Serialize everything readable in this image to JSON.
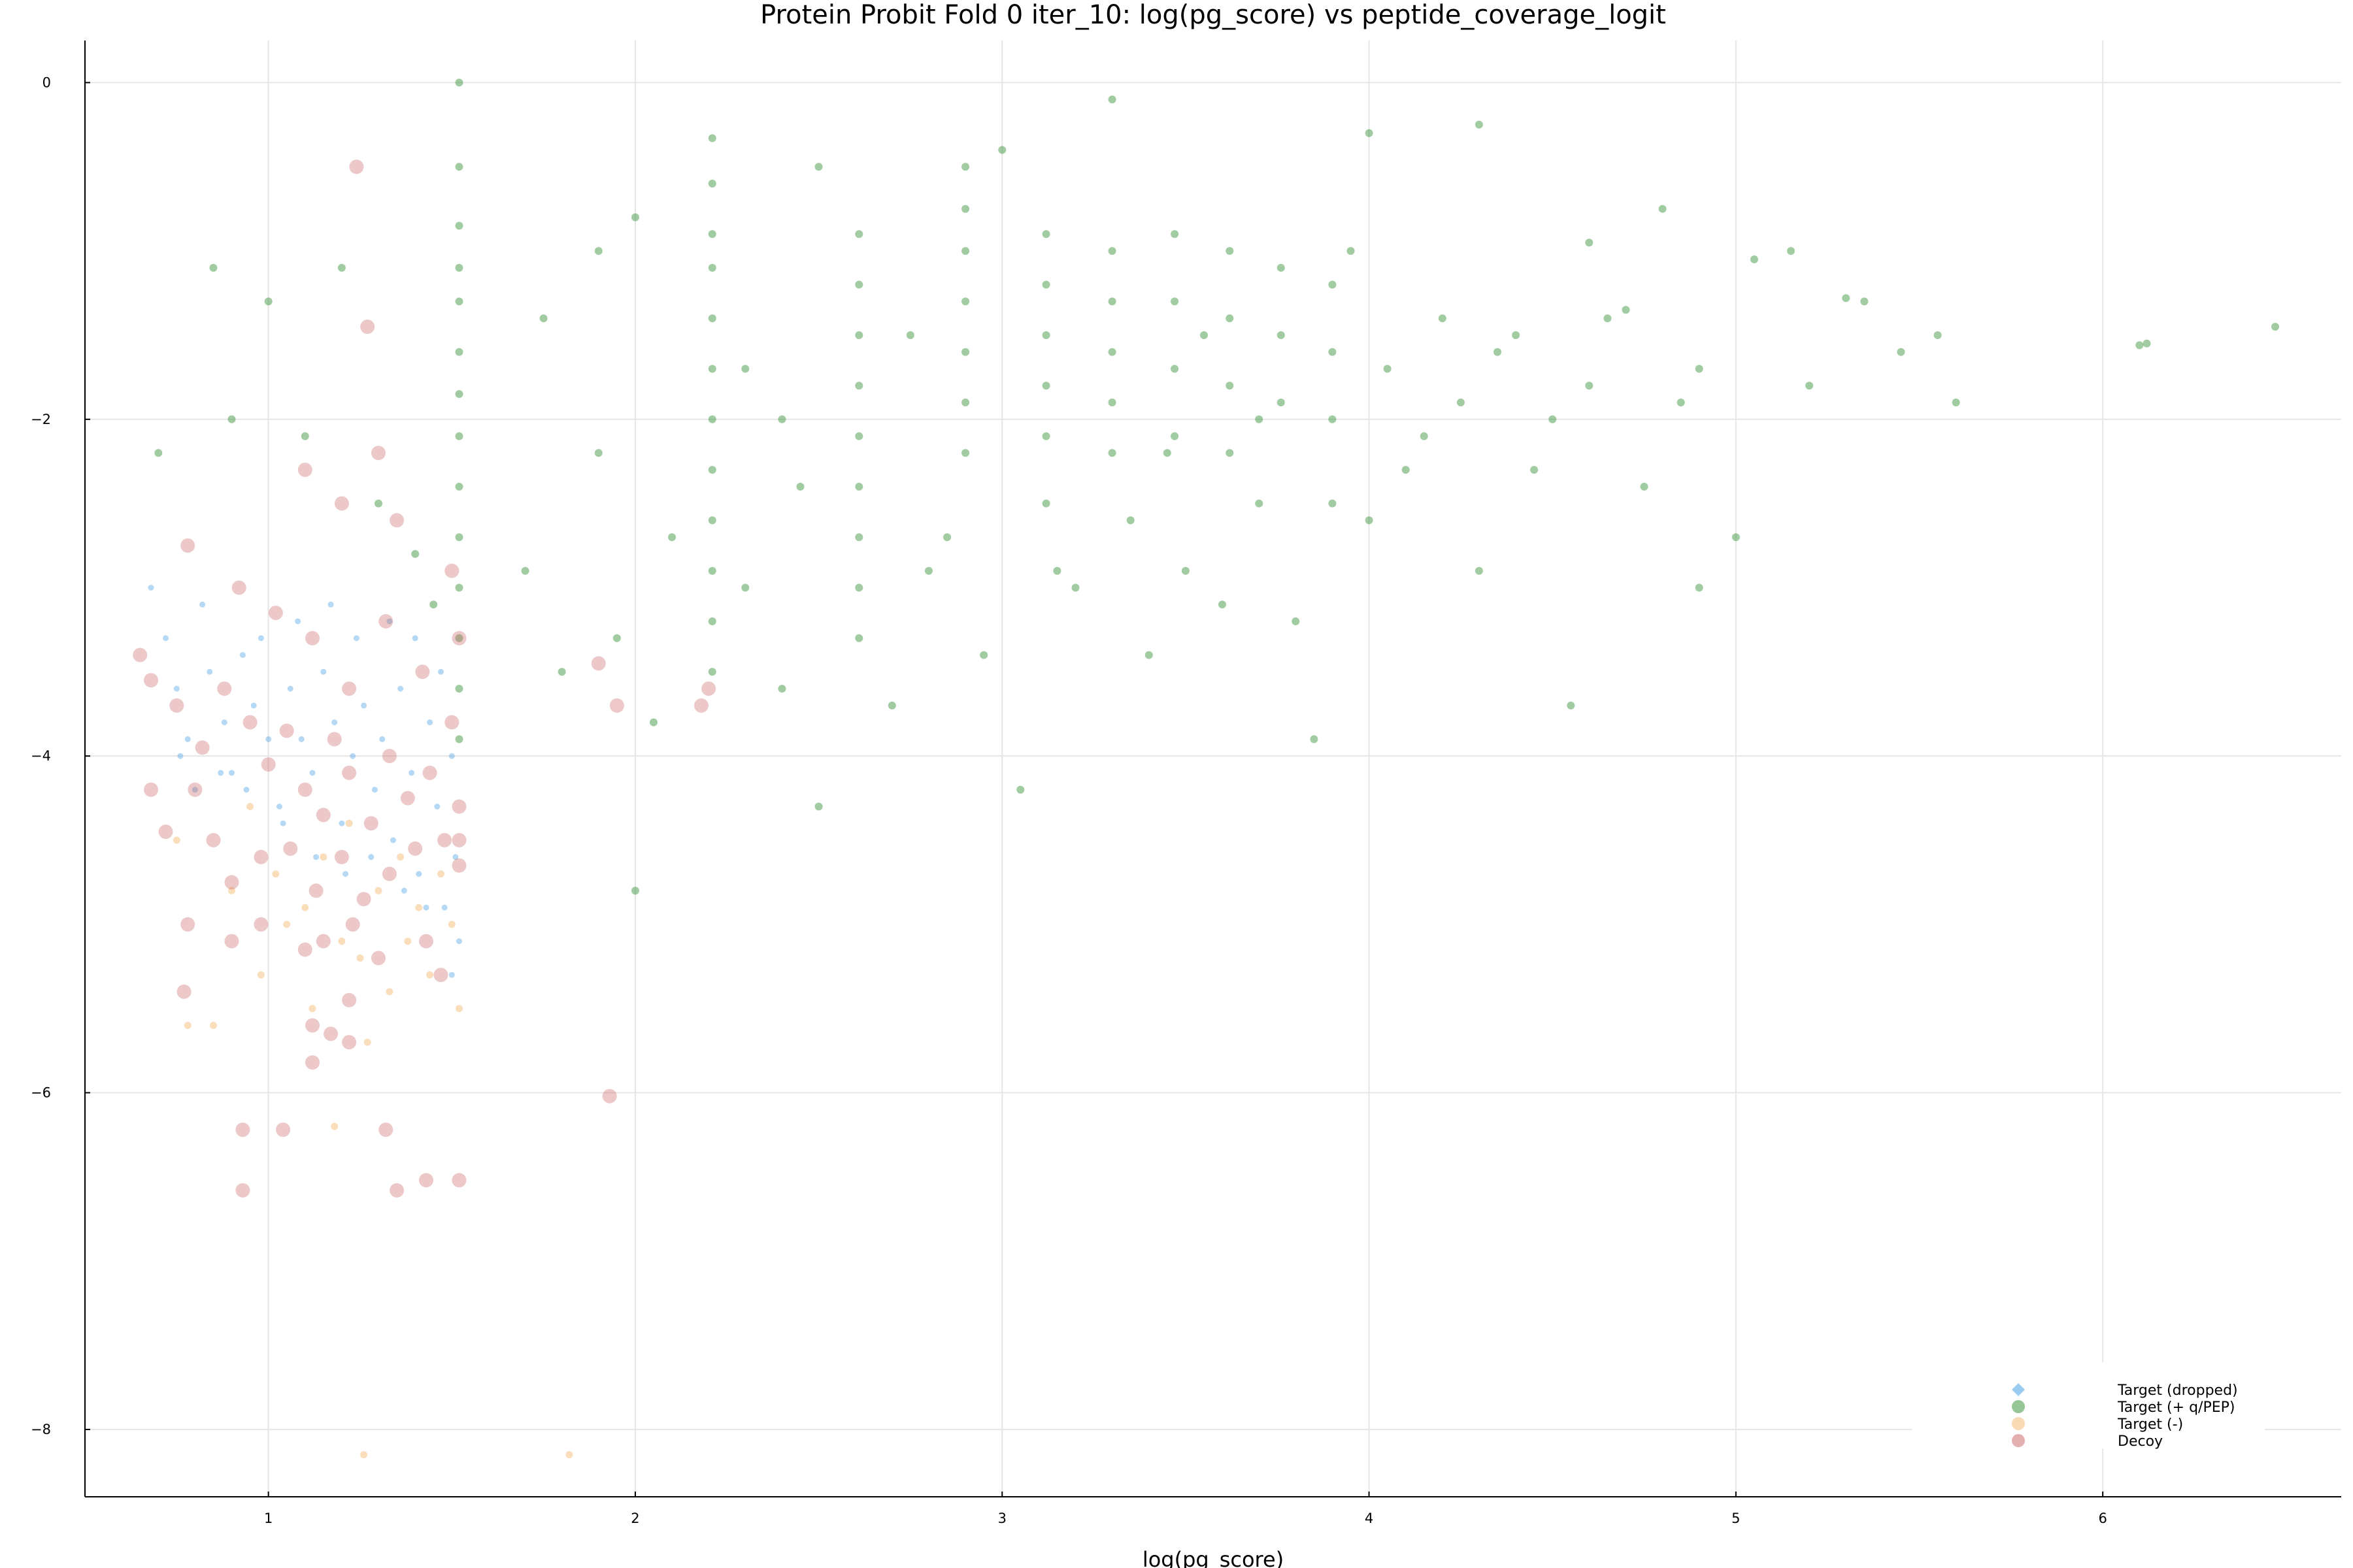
{
  "chart_data": {
    "type": "scatter",
    "title": "Protein Probit Fold 0 iter_10: log(pg_score) vs peptide_coverage_logit",
    "xlabel": "log(pg_score)",
    "ylabel": "",
    "xlim": [
      0.5,
      6.65
    ],
    "ylim": [
      -8.4,
      0.25
    ],
    "xticks": [
      1,
      2,
      3,
      4,
      5,
      6
    ],
    "yticks": [
      0,
      -2,
      -4,
      -6,
      -8
    ],
    "grid": true,
    "legend_position": "bottom-right",
    "series": [
      {
        "name": "Target (dropped)",
        "color": "#5aa8e6",
        "marker": "diamond",
        "points": [
          [
            0.68,
            -3.0
          ],
          [
            0.72,
            -3.3
          ],
          [
            0.75,
            -3.6
          ],
          [
            0.78,
            -3.9
          ],
          [
            0.8,
            -4.2
          ],
          [
            0.84,
            -3.5
          ],
          [
            0.88,
            -3.8
          ],
          [
            0.9,
            -4.1
          ],
          [
            0.93,
            -3.4
          ],
          [
            0.96,
            -3.7
          ],
          [
            1.0,
            -3.9
          ],
          [
            1.03,
            -4.3
          ],
          [
            1.06,
            -3.6
          ],
          [
            1.09,
            -3.9
          ],
          [
            1.12,
            -4.1
          ],
          [
            1.15,
            -3.5
          ],
          [
            1.18,
            -3.8
          ],
          [
            1.2,
            -4.4
          ],
          [
            1.23,
            -4.0
          ],
          [
            1.26,
            -3.7
          ],
          [
            1.29,
            -4.2
          ],
          [
            1.31,
            -3.9
          ],
          [
            1.34,
            -4.5
          ],
          [
            1.36,
            -3.6
          ],
          [
            1.39,
            -4.1
          ],
          [
            1.41,
            -4.7
          ],
          [
            1.44,
            -3.8
          ],
          [
            1.46,
            -4.3
          ],
          [
            1.48,
            -4.9
          ],
          [
            1.5,
            -4.0
          ],
          [
            1.51,
            -4.6
          ],
          [
            1.52,
            -5.1
          ],
          [
            1.5,
            -5.3
          ],
          [
            1.47,
            -3.5
          ],
          [
            1.43,
            -4.9
          ],
          [
            1.4,
            -3.3
          ],
          [
            1.37,
            -4.8
          ],
          [
            1.33,
            -3.2
          ],
          [
            1.28,
            -4.6
          ],
          [
            1.24,
            -3.3
          ],
          [
            1.21,
            -4.7
          ],
          [
            1.17,
            -3.1
          ],
          [
            1.13,
            -4.6
          ],
          [
            1.08,
            -3.2
          ],
          [
            1.04,
            -4.4
          ],
          [
            0.98,
            -3.3
          ],
          [
            0.94,
            -4.2
          ],
          [
            0.87,
            -4.1
          ],
          [
            0.82,
            -3.1
          ],
          [
            0.76,
            -4.0
          ]
        ]
      },
      {
        "name": "Target (+ q/PEP)",
        "color": "#2e8b2e",
        "marker": "circle",
        "points": [
          [
            1.52,
            0.0
          ],
          [
            1.52,
            -0.5
          ],
          [
            1.52,
            -0.85
          ],
          [
            1.52,
            -1.1
          ],
          [
            1.52,
            -1.3
          ],
          [
            1.52,
            -1.6
          ],
          [
            1.52,
            -1.85
          ],
          [
            1.52,
            -2.1
          ],
          [
            1.52,
            -2.4
          ],
          [
            1.52,
            -2.7
          ],
          [
            1.52,
            -3.0
          ],
          [
            1.52,
            -3.3
          ],
          [
            1.52,
            -3.6
          ],
          [
            1.52,
            -3.9
          ],
          [
            2.21,
            -0.33
          ],
          [
            2.21,
            -0.6
          ],
          [
            2.21,
            -0.9
          ],
          [
            2.21,
            -1.1
          ],
          [
            2.21,
            -1.4
          ],
          [
            2.21,
            -1.7
          ],
          [
            2.21,
            -2.0
          ],
          [
            2.21,
            -2.3
          ],
          [
            2.21,
            -2.6
          ],
          [
            2.21,
            -2.9
          ],
          [
            2.21,
            -3.2
          ],
          [
            2.21,
            -3.5
          ],
          [
            2.61,
            -0.9
          ],
          [
            2.61,
            -1.2
          ],
          [
            2.61,
            -1.5
          ],
          [
            2.61,
            -1.8
          ],
          [
            2.61,
            -2.1
          ],
          [
            2.61,
            -2.4
          ],
          [
            2.61,
            -2.7
          ],
          [
            2.61,
            -3.0
          ],
          [
            2.61,
            -3.3
          ],
          [
            2.9,
            -0.5
          ],
          [
            2.9,
            -0.75
          ],
          [
            2.9,
            -1.0
          ],
          [
            2.9,
            -1.3
          ],
          [
            2.9,
            -1.6
          ],
          [
            2.9,
            -1.9
          ],
          [
            2.9,
            -2.2
          ],
          [
            3.12,
            -0.9
          ],
          [
            3.12,
            -1.2
          ],
          [
            3.12,
            -1.5
          ],
          [
            3.12,
            -1.8
          ],
          [
            3.12,
            -2.1
          ],
          [
            3.12,
            -2.5
          ],
          [
            3.3,
            -1.0
          ],
          [
            3.3,
            -1.3
          ],
          [
            3.3,
            -1.6
          ],
          [
            3.3,
            -1.9
          ],
          [
            3.3,
            -2.2
          ],
          [
            3.47,
            -0.9
          ],
          [
            3.47,
            -1.3
          ],
          [
            3.47,
            -1.7
          ],
          [
            3.47,
            -2.1
          ],
          [
            3.62,
            -1.0
          ],
          [
            3.62,
            -1.4
          ],
          [
            3.62,
            -1.8
          ],
          [
            3.62,
            -2.2
          ],
          [
            3.76,
            -1.1
          ],
          [
            3.76,
            -1.5
          ],
          [
            3.76,
            -1.9
          ],
          [
            3.9,
            -1.2
          ],
          [
            3.9,
            -1.6
          ],
          [
            3.9,
            -2.0
          ],
          [
            4.2,
            -1.4
          ],
          [
            4.4,
            -1.5
          ],
          [
            4.7,
            -1.35
          ],
          [
            5.3,
            -1.28
          ],
          [
            6.12,
            -1.55
          ],
          [
            6.47,
            -1.45
          ],
          [
            1.0,
            -1.3
          ],
          [
            0.85,
            -1.1
          ],
          [
            1.2,
            -1.1
          ],
          [
            0.7,
            -2.2
          ],
          [
            0.9,
            -2.0
          ],
          [
            1.1,
            -2.1
          ],
          [
            1.3,
            -2.5
          ],
          [
            1.4,
            -2.8
          ],
          [
            1.45,
            -3.1
          ],
          [
            1.7,
            -2.9
          ],
          [
            1.8,
            -3.5
          ],
          [
            1.9,
            -2.2
          ],
          [
            2.0,
            -4.8
          ],
          [
            2.05,
            -3.8
          ],
          [
            1.95,
            -3.3
          ],
          [
            2.1,
            -2.7
          ],
          [
            2.3,
            -3.0
          ],
          [
            2.4,
            -3.6
          ],
          [
            2.5,
            -4.3
          ],
          [
            2.45,
            -2.4
          ],
          [
            2.7,
            -3.7
          ],
          [
            2.8,
            -2.9
          ],
          [
            2.95,
            -3.4
          ],
          [
            3.05,
            -4.2
          ],
          [
            3.2,
            -3.0
          ],
          [
            3.35,
            -2.6
          ],
          [
            3.4,
            -3.4
          ],
          [
            3.5,
            -2.9
          ],
          [
            3.6,
            -3.1
          ],
          [
            3.7,
            -2.5
          ],
          [
            3.8,
            -3.2
          ],
          [
            3.85,
            -3.9
          ],
          [
            4.0,
            -2.6
          ],
          [
            4.1,
            -2.3
          ],
          [
            4.25,
            -1.9
          ],
          [
            4.3,
            -2.9
          ],
          [
            4.45,
            -2.3
          ],
          [
            4.5,
            -2.0
          ],
          [
            4.6,
            -1.8
          ],
          [
            4.75,
            -2.4
          ],
          [
            4.85,
            -1.9
          ],
          [
            4.9,
            -3.0
          ],
          [
            5.0,
            -2.7
          ],
          [
            5.2,
            -1.8
          ],
          [
            5.45,
            -1.6
          ],
          [
            5.6,
            -1.9
          ],
          [
            4.55,
            -3.7
          ],
          [
            3.3,
            -0.1
          ],
          [
            4.0,
            -0.3
          ],
          [
            4.3,
            -0.25
          ],
          [
            3.0,
            -0.4
          ],
          [
            2.5,
            -0.5
          ],
          [
            3.95,
            -1.0
          ],
          [
            4.6,
            -0.95
          ],
          [
            4.8,
            -0.75
          ],
          [
            5.05,
            -1.05
          ],
          [
            1.75,
            -1.4
          ],
          [
            1.9,
            -1.0
          ],
          [
            2.0,
            -0.8
          ],
          [
            2.3,
            -1.7
          ],
          [
            2.4,
            -2.0
          ],
          [
            2.75,
            -1.5
          ],
          [
            2.85,
            -2.7
          ],
          [
            3.15,
            -2.9
          ],
          [
            3.45,
            -2.2
          ],
          [
            3.55,
            -1.5
          ],
          [
            3.7,
            -2.0
          ],
          [
            3.9,
            -2.5
          ],
          [
            4.05,
            -1.7
          ],
          [
            4.15,
            -2.1
          ],
          [
            4.35,
            -1.6
          ],
          [
            4.65,
            -1.4
          ],
          [
            4.9,
            -1.7
          ],
          [
            5.15,
            -1.0
          ],
          [
            5.35,
            -1.3
          ],
          [
            5.55,
            -1.5
          ],
          [
            6.1,
            -1.56
          ]
        ]
      },
      {
        "name": "Target (-)",
        "color": "#f5b56b",
        "marker": "circle",
        "points": [
          [
            0.75,
            -4.5
          ],
          [
            0.78,
            -5.6
          ],
          [
            0.85,
            -5.6
          ],
          [
            0.9,
            -4.8
          ],
          [
            0.95,
            -4.3
          ],
          [
            0.98,
            -5.3
          ],
          [
            1.02,
            -4.7
          ],
          [
            1.05,
            -5.0
          ],
          [
            1.1,
            -4.9
          ],
          [
            1.12,
            -5.5
          ],
          [
            1.15,
            -4.6
          ],
          [
            1.18,
            -6.2
          ],
          [
            1.2,
            -5.1
          ],
          [
            1.22,
            -4.4
          ],
          [
            1.25,
            -5.2
          ],
          [
            1.27,
            -5.7
          ],
          [
            1.3,
            -4.8
          ],
          [
            1.33,
            -5.4
          ],
          [
            1.36,
            -4.6
          ],
          [
            1.38,
            -5.1
          ],
          [
            1.41,
            -4.9
          ],
          [
            1.44,
            -5.3
          ],
          [
            1.47,
            -4.7
          ],
          [
            1.5,
            -5.0
          ],
          [
            1.52,
            -5.5
          ],
          [
            1.26,
            -8.15
          ],
          [
            1.82,
            -8.15
          ]
        ]
      },
      {
        "name": "Decoy",
        "color": "#c86060",
        "marker": "circle",
        "points": [
          [
            1.24,
            -0.5
          ],
          [
            1.27,
            -1.45
          ],
          [
            1.1,
            -2.3
          ],
          [
            1.2,
            -2.5
          ],
          [
            1.3,
            -2.2
          ],
          [
            1.35,
            -2.6
          ],
          [
            0.78,
            -2.75
          ],
          [
            0.92,
            -3.0
          ],
          [
            1.02,
            -3.15
          ],
          [
            1.12,
            -3.3
          ],
          [
            1.22,
            -3.6
          ],
          [
            1.32,
            -3.2
          ],
          [
            1.42,
            -3.5
          ],
          [
            1.5,
            -2.9
          ],
          [
            1.52,
            -3.3
          ],
          [
            1.5,
            -3.8
          ],
          [
            0.65,
            -3.4
          ],
          [
            0.68,
            -3.55
          ],
          [
            0.75,
            -3.7
          ],
          [
            0.82,
            -3.95
          ],
          [
            0.88,
            -3.6
          ],
          [
            0.95,
            -3.8
          ],
          [
            1.0,
            -4.05
          ],
          [
            1.05,
            -3.85
          ],
          [
            1.1,
            -4.2
          ],
          [
            1.15,
            -4.35
          ],
          [
            1.18,
            -3.9
          ],
          [
            1.22,
            -4.1
          ],
          [
            1.28,
            -4.4
          ],
          [
            1.33,
            -4.0
          ],
          [
            1.38,
            -4.25
          ],
          [
            1.44,
            -4.1
          ],
          [
            1.48,
            -4.5
          ],
          [
            1.52,
            -4.3
          ],
          [
            1.52,
            -4.5
          ],
          [
            1.52,
            -4.65
          ],
          [
            0.68,
            -4.2
          ],
          [
            0.72,
            -4.45
          ],
          [
            0.8,
            -4.2
          ],
          [
            0.85,
            -4.5
          ],
          [
            0.9,
            -4.75
          ],
          [
            0.98,
            -4.6
          ],
          [
            1.06,
            -4.55
          ],
          [
            1.13,
            -4.8
          ],
          [
            1.2,
            -4.6
          ],
          [
            1.26,
            -4.85
          ],
          [
            1.33,
            -4.7
          ],
          [
            1.4,
            -4.55
          ],
          [
            0.78,
            -5.0
          ],
          [
            0.9,
            -5.1
          ],
          [
            0.98,
            -5.0
          ],
          [
            1.1,
            -5.15
          ],
          [
            1.15,
            -5.1
          ],
          [
            1.23,
            -5.0
          ],
          [
            1.3,
            -5.2
          ],
          [
            1.43,
            -5.1
          ],
          [
            1.47,
            -5.3
          ],
          [
            0.77,
            -5.4
          ],
          [
            1.22,
            -5.45
          ],
          [
            1.12,
            -5.6
          ],
          [
            1.17,
            -5.65
          ],
          [
            1.22,
            -5.7
          ],
          [
            1.12,
            -5.82
          ],
          [
            0.93,
            -6.22
          ],
          [
            1.04,
            -6.22
          ],
          [
            1.32,
            -6.22
          ],
          [
            1.93,
            -6.02
          ],
          [
            0.93,
            -6.58
          ],
          [
            1.35,
            -6.58
          ],
          [
            1.43,
            -6.52
          ],
          [
            1.52,
            -6.52
          ],
          [
            1.9,
            -3.45
          ],
          [
            1.95,
            -3.7
          ],
          [
            2.18,
            -3.7
          ],
          [
            2.2,
            -3.6
          ]
        ]
      }
    ]
  }
}
